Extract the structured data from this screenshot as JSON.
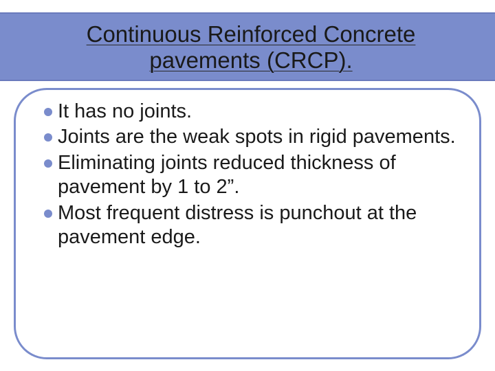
{
  "slide": {
    "title_line1": "Continuous  Reinforced Concrete",
    "title_line2": "pavements (CRCP).",
    "title_color": "#1a1a1a",
    "title_fontsize": 33,
    "header_band_color": "#7a8ccc",
    "header_band_border": "#6a7abc",
    "content_border_color": "#7a8ccc",
    "content_border_radius": 48,
    "bullet_color": "#7a8ccc",
    "bullet_fontsize": 29,
    "text_color": "#1a1a1a",
    "background_color": "#ffffff",
    "bullets": [
      "It has no joints.",
      "Joints are the weak spots in rigid pavements.",
      "Eliminating joints reduced thickness of pavement by  1 to 2”.",
      "Most frequent distress is punchout at the pavement edge."
    ]
  }
}
